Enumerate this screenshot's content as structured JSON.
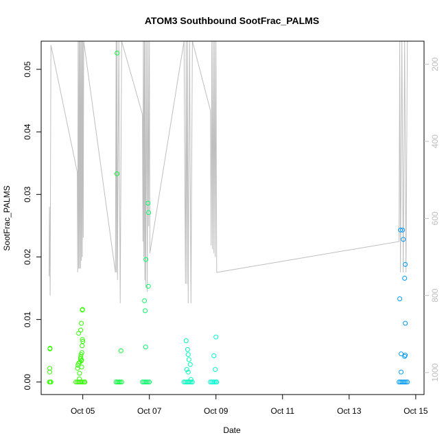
{
  "chart_data": {
    "type": "scatter",
    "title": "ATOM3 Southbound SootFrac_PALMS",
    "xlabel": "Date",
    "ylabel": "SootFrac_PALMS",
    "xlim": [
      "2017-10-03T18:00",
      "2017-10-15T06:00"
    ],
    "ylim": [
      -0.002,
      0.0545
    ],
    "x_ticks": [
      "Oct 05",
      "Oct 07",
      "Oct 09",
      "Oct 11",
      "Oct 13",
      "Oct 15"
    ],
    "x_tick_dates": [
      "2017-10-05",
      "2017-10-07",
      "2017-10-09",
      "2017-10-11",
      "2017-10-13",
      "2017-10-15"
    ],
    "y_ticks": [
      "0.00",
      "0.01",
      "0.02",
      "0.03",
      "0.04",
      "0.05"
    ],
    "y_tick_values": [
      0.0,
      0.01,
      0.02,
      0.03,
      0.04,
      0.05
    ],
    "y2_ticks": [
      "200",
      "400",
      "600",
      "800",
      "1000"
    ],
    "y2_tick_values": [
      200,
      400,
      600,
      800,
      1000
    ],
    "y2_lim": [
      1057,
      140
    ],
    "y2_reversed": true,
    "grid": false,
    "legend": "none",
    "marker": "open-circle",
    "colors": {
      "flight1": "#33ff00",
      "flight2": "#00ff33",
      "flight3": "#00ff66",
      "flight4": "#00ffbb",
      "flight5": "#00ffd5",
      "flight6": "#0099ff",
      "pressure_line": "#bebebe",
      "axis": "#000000"
    },
    "series": [
      {
        "color_key": "flight1",
        "points": [
          [
            "2017-10-04T00:00",
            0.0
          ],
          [
            "2017-10-04T00:30",
            0.0
          ],
          [
            "2017-10-04T01:00",
            0.0
          ],
          [
            "2017-10-04T00:10",
            0.0016
          ],
          [
            "2017-10-04T00:15",
            0.0022
          ],
          [
            "2017-10-04T00:20",
            0.0053
          ],
          [
            "2017-10-04T00:25",
            0.0054
          ],
          [
            "2017-10-04T19:00",
            0.0
          ],
          [
            "2017-10-04T20:00",
            0.0
          ],
          [
            "2017-10-04T21:00",
            0.0
          ],
          [
            "2017-10-04T22:00",
            0.0
          ],
          [
            "2017-10-04T23:00",
            0.0
          ],
          [
            "2017-10-05T00:00",
            0.0
          ],
          [
            "2017-10-05T01:00",
            0.0
          ],
          [
            "2017-10-05T01:30",
            0.0
          ],
          [
            "2017-10-04T20:10",
            0.0022
          ],
          [
            "2017-10-04T20:30",
            0.0027
          ],
          [
            "2017-10-04T21:00",
            0.003
          ],
          [
            "2017-10-04T21:30",
            0.0005
          ],
          [
            "2017-10-04T21:40",
            0.0014
          ],
          [
            "2017-10-04T22:00",
            0.0032
          ],
          [
            "2017-10-04T22:20",
            0.0037
          ],
          [
            "2017-10-04T22:30",
            0.004
          ],
          [
            "2017-10-04T22:45",
            0.0044
          ],
          [
            "2017-10-04T23:00",
            0.0034
          ],
          [
            "2017-10-04T23:10",
            0.0035
          ],
          [
            "2017-10-04T23:20",
            0.0047
          ],
          [
            "2017-10-04T23:30",
            0.0058
          ],
          [
            "2017-10-04T21:00",
            0.0078
          ],
          [
            "2017-10-04T22:30",
            0.0083
          ],
          [
            "2017-10-04T23:00",
            0.0094
          ],
          [
            "2017-10-04T23:40",
            0.0115
          ],
          [
            "2017-10-04T23:50",
            0.0116
          ],
          [
            "2017-10-04T23:45",
            0.0068
          ],
          [
            "2017-10-05T00:00",
            0.0065
          ],
          [
            "2017-10-04T23:10",
            0.0024
          ]
        ]
      },
      {
        "color_key": "flight2",
        "points": [
          [
            "2017-10-06T00:00",
            0.0
          ],
          [
            "2017-10-06T01:00",
            0.0
          ],
          [
            "2017-10-06T02:00",
            0.0
          ],
          [
            "2017-10-06T03:00",
            0.0
          ],
          [
            "2017-10-06T04:00",
            0.0
          ],
          [
            "2017-10-06T00:45",
            0.0526
          ],
          [
            "2017-10-06T00:40",
            0.0333
          ],
          [
            "2017-10-06T03:30",
            0.005
          ]
        ]
      },
      {
        "color_key": "flight3",
        "points": [
          [
            "2017-10-06T19:00",
            0.0
          ],
          [
            "2017-10-06T20:00",
            0.0
          ],
          [
            "2017-10-06T21:00",
            0.0
          ],
          [
            "2017-10-06T22:00",
            0.0
          ],
          [
            "2017-10-06T23:00",
            0.0
          ],
          [
            "2017-10-07T00:00",
            0.0
          ],
          [
            "2017-10-06T20:30",
            0.013
          ],
          [
            "2017-10-06T21:00",
            0.0114
          ],
          [
            "2017-10-06T21:30",
            0.0196
          ],
          [
            "2017-10-06T23:00",
            0.0286
          ],
          [
            "2017-10-06T23:30",
            0.0271
          ],
          [
            "2017-10-06T23:20",
            0.0153
          ],
          [
            "2017-10-06T21:20",
            0.0056
          ]
        ]
      },
      {
        "color_key": "flight4",
        "points": [
          [
            "2017-10-08T01:00",
            0.0
          ],
          [
            "2017-10-08T02:00",
            0.0
          ],
          [
            "2017-10-08T03:00",
            0.0
          ],
          [
            "2017-10-08T04:00",
            0.0
          ],
          [
            "2017-10-08T05:00",
            0.0
          ],
          [
            "2017-10-08T06:00",
            0.0
          ],
          [
            "2017-10-08T07:00",
            0.0
          ],
          [
            "2017-10-08T02:30",
            0.0066
          ],
          [
            "2017-10-08T03:30",
            0.0052
          ],
          [
            "2017-10-08T04:00",
            0.0044
          ],
          [
            "2017-10-08T04:30",
            0.0036
          ],
          [
            "2017-10-08T05:30",
            0.0028
          ],
          [
            "2017-10-08T03:00",
            0.002
          ],
          [
            "2017-10-08T04:00",
            0.0016
          ],
          [
            "2017-10-08T06:00",
            0.0004
          ]
        ]
      },
      {
        "color_key": "flight5",
        "points": [
          [
            "2017-10-08T20:00",
            0.0
          ],
          [
            "2017-10-08T21:00",
            0.0
          ],
          [
            "2017-10-08T22:00",
            0.0
          ],
          [
            "2017-10-08T23:00",
            0.0
          ],
          [
            "2017-10-09T00:00",
            0.0
          ],
          [
            "2017-10-09T00:30",
            0.0
          ],
          [
            "2017-10-08T22:30",
            0.0042
          ],
          [
            "2017-10-09T00:00",
            0.0072
          ],
          [
            "2017-10-08T23:30",
            0.002
          ]
        ]
      },
      {
        "color_key": "flight6",
        "points": [
          [
            "2017-10-14T12:00",
            0.0
          ],
          [
            "2017-10-14T13:00",
            0.0
          ],
          [
            "2017-10-14T14:00",
            0.0
          ],
          [
            "2017-10-14T15:00",
            0.0
          ],
          [
            "2017-10-14T16:00",
            0.0
          ],
          [
            "2017-10-14T17:00",
            0.0
          ],
          [
            "2017-10-14T18:00",
            0.0
          ],
          [
            "2017-10-14T12:30",
            0.0133
          ],
          [
            "2017-10-14T13:00",
            0.0243
          ],
          [
            "2017-10-14T14:30",
            0.0243
          ],
          [
            "2017-10-14T15:00",
            0.0228
          ],
          [
            "2017-10-14T16:30",
            0.0188
          ],
          [
            "2017-10-14T16:00",
            0.0166
          ],
          [
            "2017-10-14T16:30",
            0.0094
          ],
          [
            "2017-10-14T13:30",
            0.0045
          ],
          [
            "2017-10-14T16:00",
            0.0041
          ],
          [
            "2017-10-14T16:30",
            0.0043
          ],
          [
            "2017-10-14T13:30",
            0.0016
          ]
        ]
      }
    ],
    "pressure_trace": [
      [
        "2017-10-03T23:45",
        750
      ],
      [
        "2017-10-04T00:00",
        570
      ],
      [
        "2017-10-04T00:30",
        800
      ],
      [
        "2017-10-04T01:00",
        150
      ],
      [
        "2017-10-04T20:00",
        480
      ],
      [
        "2017-10-04T20:20",
        740
      ],
      [
        "2017-10-04T20:40",
        140
      ],
      [
        "2017-10-04T21:00",
        730
      ],
      [
        "2017-10-04T21:20",
        140
      ],
      [
        "2017-10-04T21:40",
        730
      ],
      [
        "2017-10-04T22:00",
        140
      ],
      [
        "2017-10-04T22:20",
        730
      ],
      [
        "2017-10-04T22:40",
        140
      ],
      [
        "2017-10-04T23:00",
        710
      ],
      [
        "2017-10-04T23:20",
        140
      ],
      [
        "2017-10-04T23:40",
        700
      ],
      [
        "2017-10-05T00:00",
        140
      ],
      [
        "2017-10-05T00:20",
        650
      ],
      [
        "2017-10-05T00:40",
        140
      ],
      [
        "2017-10-05T23:30",
        740
      ],
      [
        "2017-10-06T00:00",
        140
      ],
      [
        "2017-10-06T00:20",
        740
      ],
      [
        "2017-10-06T00:40",
        140
      ],
      [
        "2017-10-06T01:00",
        760
      ],
      [
        "2017-10-06T02:00",
        140
      ],
      [
        "2017-10-06T03:00",
        820
      ],
      [
        "2017-10-06T04:00",
        140
      ],
      [
        "2017-10-06T19:00",
        330
      ],
      [
        "2017-10-06T19:20",
        660
      ],
      [
        "2017-10-06T19:40",
        140
      ],
      [
        "2017-10-06T20:00",
        700
      ],
      [
        "2017-10-06T20:20",
        140
      ],
      [
        "2017-10-06T20:40",
        760
      ],
      [
        "2017-10-06T21:00",
        140
      ],
      [
        "2017-10-06T21:20",
        780
      ],
      [
        "2017-10-06T22:00",
        140
      ],
      [
        "2017-10-06T22:30",
        790
      ],
      [
        "2017-10-06T23:00",
        140
      ],
      [
        "2017-10-06T23:30",
        620
      ],
      [
        "2017-10-07T00:00",
        140
      ],
      [
        "2017-10-07T00:20",
        690
      ],
      [
        "2017-10-08T01:00",
        140
      ],
      [
        "2017-10-08T02:00",
        770
      ],
      [
        "2017-10-08T02:30",
        140
      ],
      [
        "2017-10-08T03:00",
        770
      ],
      [
        "2017-10-08T03:30",
        140
      ],
      [
        "2017-10-08T04:00",
        820
      ],
      [
        "2017-10-08T05:00",
        140
      ],
      [
        "2017-10-08T06:00",
        820
      ],
      [
        "2017-10-08T07:00",
        140
      ],
      [
        "2017-10-08T20:00",
        320
      ],
      [
        "2017-10-08T20:30",
        670
      ],
      [
        "2017-10-08T21:00",
        140
      ],
      [
        "2017-10-08T21:30",
        680
      ],
      [
        "2017-10-08T22:00",
        140
      ],
      [
        "2017-10-08T22:30",
        690
      ],
      [
        "2017-10-08T23:00",
        140
      ],
      [
        "2017-10-08T23:30",
        700
      ],
      [
        "2017-10-09T00:00",
        140
      ],
      [
        "2017-10-09T00:30",
        740
      ],
      [
        "2017-10-14T12:00",
        660
      ],
      [
        "2017-10-14T12:30",
        140
      ],
      [
        "2017-10-14T13:00",
        740
      ],
      [
        "2017-10-14T14:00",
        140
      ],
      [
        "2017-10-14T15:00",
        740
      ],
      [
        "2017-10-14T16:00",
        140
      ],
      [
        "2017-10-14T17:00",
        740
      ],
      [
        "2017-10-14T18:00",
        140
      ]
    ]
  }
}
